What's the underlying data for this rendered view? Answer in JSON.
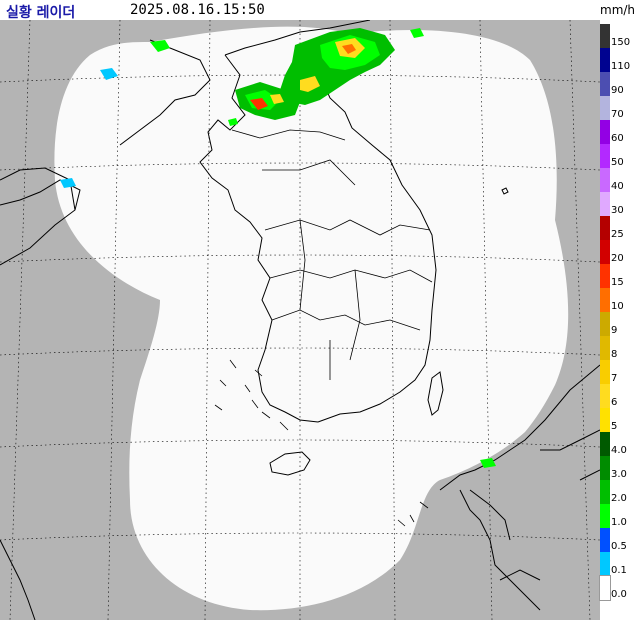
{
  "header": {
    "title": "실황 레이더",
    "timestamp": "2025.08.16.15:50",
    "unit": "mm/h"
  },
  "map": {
    "colors": {
      "outside_coverage": "#b4b4b4",
      "coverage": "#fafafa",
      "coastline": "#000000",
      "grid": "#000000"
    }
  },
  "legend": [
    {
      "label": "150",
      "color": "#333333"
    },
    {
      "label": "110",
      "color": "#000390"
    },
    {
      "label": "90",
      "color": "#4c4eb1"
    },
    {
      "label": "70",
      "color": "#b3b4de"
    },
    {
      "label": "60",
      "color": "#9300e4"
    },
    {
      "label": "50",
      "color": "#b329ff"
    },
    {
      "label": "40",
      "color": "#c969ff"
    },
    {
      "label": "30",
      "color": "#e0a9ff"
    },
    {
      "label": "25",
      "color": "#b40000"
    },
    {
      "label": "20",
      "color": "#d20000"
    },
    {
      "label": "15",
      "color": "#ff3200"
    },
    {
      "label": "10",
      "color": "#ff6e00"
    },
    {
      "label": "9",
      "color": "#ccaa00"
    },
    {
      "label": "8",
      "color": "#e0b900"
    },
    {
      "label": "7",
      "color": "#f9cd00"
    },
    {
      "label": "6",
      "color": "#ffdc1f"
    },
    {
      "label": "5",
      "color": "#ffe100"
    },
    {
      "label": "4.0",
      "color": "#005a00"
    },
    {
      "label": "3.0",
      "color": "#008c00"
    },
    {
      "label": "2.0",
      "color": "#00be00"
    },
    {
      "label": "1.0",
      "color": "#00ff00"
    },
    {
      "label": "0.5",
      "color": "#0050ff"
    },
    {
      "label": "0.1",
      "color": "#00c8ff"
    },
    {
      "label": "0.0",
      "color": "#ffffff"
    }
  ]
}
